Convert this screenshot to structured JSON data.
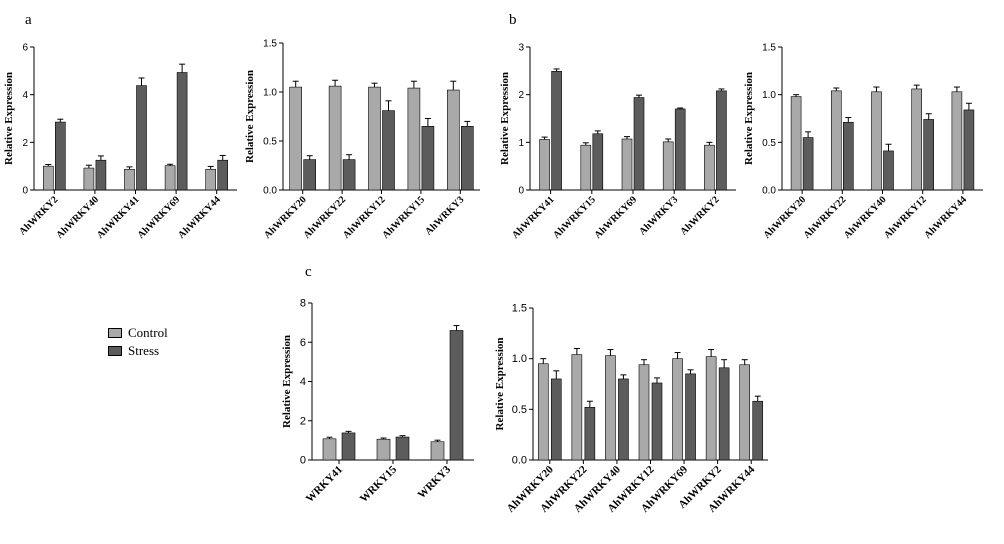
{
  "panel_labels": {
    "a": "a",
    "b": "b",
    "c": "c"
  },
  "colors": {
    "control": "#A9A9A9",
    "stress": "#5C5C5C",
    "axis": "#000000"
  },
  "legend": {
    "control": "Control",
    "stress": "Stress"
  },
  "chart_data": [
    {
      "type": "bar",
      "panel": "a",
      "ylabel": "Relative Expression",
      "categories": [
        "AhWRKY2",
        "AhWRKY40",
        "AhWRKY41",
        "AhWRKY69",
        "AhWRKY44"
      ],
      "series": [
        {
          "name": "Control",
          "values": [
            1.0,
            0.92,
            0.87,
            1.02,
            0.87
          ],
          "errors": [
            0.07,
            0.12,
            0.1,
            0.06,
            0.12
          ]
        },
        {
          "name": "Stress",
          "values": [
            2.85,
            1.25,
            4.38,
            4.93,
            1.25
          ],
          "errors": [
            0.12,
            0.18,
            0.32,
            0.35,
            0.2
          ]
        }
      ],
      "ylim": [
        0,
        6
      ],
      "yticks": [
        0,
        2,
        4,
        6
      ],
      "ytick_labels": [
        "0",
        "2",
        "4",
        "6"
      ]
    },
    {
      "type": "bar",
      "panel": "a",
      "ylabel": "Relative Expression",
      "categories": [
        "AhWRKY20",
        "AhWRKY22",
        "AhWRKY12",
        "AhWRKY15",
        "AhWRKY3"
      ],
      "series": [
        {
          "name": "Control",
          "values": [
            1.05,
            1.06,
            1.05,
            1.04,
            1.02
          ],
          "errors": [
            0.06,
            0.06,
            0.04,
            0.07,
            0.09
          ]
        },
        {
          "name": "Stress",
          "values": [
            0.31,
            0.31,
            0.81,
            0.65,
            0.65
          ],
          "errors": [
            0.04,
            0.05,
            0.1,
            0.08,
            0.05
          ]
        }
      ],
      "ylim": [
        0,
        1.5
      ],
      "yticks": [
        0,
        0.5,
        1.0,
        1.5
      ],
      "ytick_labels": [
        "0.0",
        "0.5",
        "1.0",
        "1.5"
      ]
    },
    {
      "type": "bar",
      "panel": "b",
      "ylabel": "Relative Expression",
      "categories": [
        "AhWRKY41",
        "AhWRKY15",
        "AhWRKY69",
        "AhWRKY3",
        "AhWRKY2"
      ],
      "series": [
        {
          "name": "Control",
          "values": [
            1.06,
            0.94,
            1.07,
            1.01,
            0.94
          ],
          "errors": [
            0.05,
            0.05,
            0.05,
            0.06,
            0.06
          ]
        },
        {
          "name": "Stress",
          "values": [
            2.49,
            1.18,
            1.94,
            1.7,
            2.08
          ],
          "errors": [
            0.05,
            0.06,
            0.05,
            0.02,
            0.04
          ]
        }
      ],
      "ylim": [
        0,
        3
      ],
      "yticks": [
        0,
        1,
        2,
        3
      ],
      "ytick_labels": [
        "0",
        "1",
        "2",
        "3"
      ]
    },
    {
      "type": "bar",
      "panel": "b",
      "ylabel": "Relative Expression",
      "categories": [
        "AhWRKY20",
        "AhWRKY22",
        "AhWRKY40",
        "AhWRKY12",
        "AhWRKY44"
      ],
      "series": [
        {
          "name": "Control",
          "values": [
            0.98,
            1.04,
            1.03,
            1.06,
            1.03
          ],
          "errors": [
            0.02,
            0.03,
            0.05,
            0.04,
            0.05
          ]
        },
        {
          "name": "Stress",
          "values": [
            0.55,
            0.71,
            0.41,
            0.74,
            0.84
          ],
          "errors": [
            0.06,
            0.05,
            0.07,
            0.06,
            0.07
          ]
        }
      ],
      "ylim": [
        0,
        1.5
      ],
      "yticks": [
        0,
        0.5,
        1.0,
        1.5
      ],
      "ytick_labels": [
        "0.0",
        "0.5",
        "1.0",
        "1.5"
      ]
    },
    {
      "type": "bar",
      "panel": "c",
      "ylabel": "Relative Expression",
      "categories": [
        "WRKY41",
        "WRKY15",
        "WRKY3"
      ],
      "series": [
        {
          "name": "Control",
          "values": [
            1.08,
            1.06,
            0.93
          ],
          "errors": [
            0.08,
            0.06,
            0.08
          ]
        },
        {
          "name": "Stress",
          "values": [
            1.38,
            1.17,
            6.6
          ],
          "errors": [
            0.08,
            0.07,
            0.25
          ]
        }
      ],
      "ylim": [
        0,
        8
      ],
      "yticks": [
        0,
        2,
        4,
        6,
        8
      ],
      "ytick_labels": [
        "0",
        "2",
        "4",
        "6",
        "8"
      ]
    },
    {
      "type": "bar",
      "panel": "c",
      "ylabel": "Relative Expression",
      "categories": [
        "AhWRKY20",
        "AhWRKY22",
        "AhWRKY40",
        "AhWRKY12",
        "AhWRKY69",
        "AhWRKY2",
        "AhWRKY44"
      ],
      "series": [
        {
          "name": "Control",
          "values": [
            0.95,
            1.04,
            1.03,
            0.94,
            1.0,
            1.02,
            0.94
          ],
          "errors": [
            0.05,
            0.06,
            0.06,
            0.05,
            0.06,
            0.07,
            0.05
          ]
        },
        {
          "name": "Stress",
          "values": [
            0.8,
            0.52,
            0.8,
            0.76,
            0.85,
            0.91,
            0.58
          ],
          "errors": [
            0.08,
            0.06,
            0.04,
            0.05,
            0.04,
            0.08,
            0.05
          ]
        }
      ],
      "ylim": [
        0,
        1.5
      ],
      "yticks": [
        0,
        0.5,
        1.0,
        1.5
      ],
      "ytick_labels": [
        "0.0",
        "0.5",
        "1.0",
        "1.5"
      ]
    }
  ]
}
